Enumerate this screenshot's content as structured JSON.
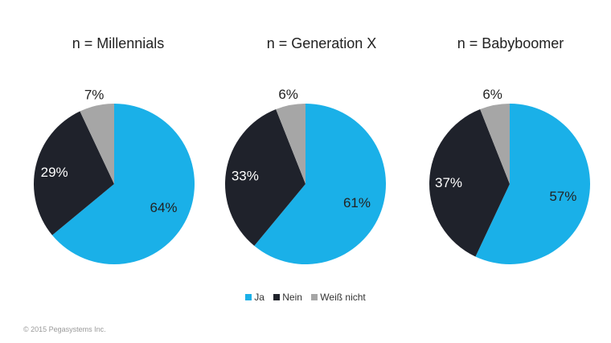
{
  "chart_data": [
    {
      "type": "pie",
      "title": "n = Millennials",
      "categories": [
        "Ja",
        "Nein",
        "Weiß nicht"
      ],
      "values": [
        64,
        29,
        7
      ],
      "labels": [
        "64%",
        "29%",
        "7%"
      ]
    },
    {
      "type": "pie",
      "title": "n = Generation X",
      "categories": [
        "Ja",
        "Nein",
        "Weiß nicht"
      ],
      "values": [
        61,
        33,
        6
      ],
      "labels": [
        "61%",
        "33%",
        "6%"
      ]
    },
    {
      "type": "pie",
      "title": "n = Babyboomer",
      "categories": [
        "Ja",
        "Nein",
        "Weiß nicht"
      ],
      "values": [
        57,
        37,
        6
      ],
      "labels": [
        "57%",
        "37%",
        "6%"
      ]
    }
  ],
  "legend": {
    "items": [
      "Ja",
      "Nein",
      "Weiß nicht"
    ],
    "placement": "bottom"
  },
  "colors": {
    "Ja": "#1ab0e8",
    "Nein": "#1f222b",
    "Weiß nicht": "#a6a6a6"
  },
  "footer": "© 2015 Pegasystems Inc."
}
